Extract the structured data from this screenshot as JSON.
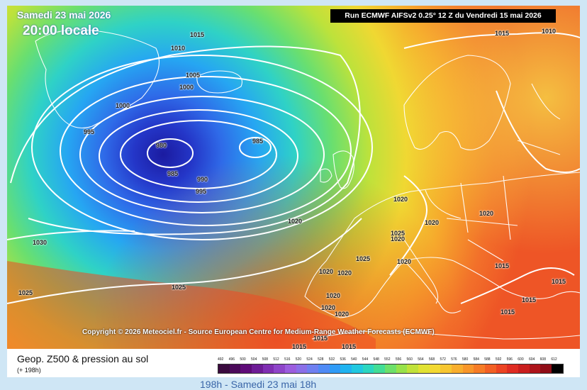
{
  "header": {
    "date_title": "Samedi 23 mai 2026",
    "time_title": "20:00 locale",
    "run_info": "Run ECMWF AIFSv2 0.25° 12 Z du Vendredi 15 mai 2026"
  },
  "copyright": "Copyright © 2026 Meteociel.fr - Source European Centre for Medium-Range Weather Forecasts (ECMWF)",
  "legend": {
    "title": "Geop. Z500 & pression au sol",
    "subtitle": "(+ 198h)",
    "scale_values": [
      "492",
      "496",
      "500",
      "504",
      "508",
      "512",
      "516",
      "520",
      "524",
      "528",
      "532",
      "536",
      "540",
      "544",
      "548",
      "552",
      "556",
      "560",
      "564",
      "568",
      "572",
      "576",
      "580",
      "584",
      "588",
      "592",
      "596",
      "600",
      "604",
      "608",
      "612"
    ],
    "scale_colors": [
      "#3a0a3e",
      "#4b0a5a",
      "#5e0b78",
      "#6d1c96",
      "#7f2fb2",
      "#8e45c9",
      "#9b5dde",
      "#8a6fe8",
      "#6f7ff0",
      "#4f8af5",
      "#2f9bf7",
      "#1fb3f0",
      "#20c8e0",
      "#2bd6c0",
      "#42dd96",
      "#6de06a",
      "#97e24a",
      "#c0e23a",
      "#e1e233",
      "#f3d932",
      "#f7c631",
      "#f8ae2e",
      "#f8962a",
      "#f67c26",
      "#f26024",
      "#ec4423",
      "#df2c22",
      "#c91e1e",
      "#ad141a",
      "#8f0c16",
      "#000000"
    ]
  },
  "bottom_text": "198h - Samedi 23 mai 18h",
  "map": {
    "pressure_labels": [
      {
        "text": "1015",
        "id": "p1"
      },
      {
        "text": "1010",
        "id": "p2"
      },
      {
        "text": "1005",
        "id": "p3"
      },
      {
        "text": "1000",
        "id": "p4"
      },
      {
        "text": "1000",
        "id": "p5"
      },
      {
        "text": "995",
        "id": "p6"
      },
      {
        "text": "980",
        "id": "p7"
      },
      {
        "text": "985",
        "id": "p8"
      },
      {
        "text": "985",
        "id": "p9"
      },
      {
        "text": "990",
        "id": "p10"
      },
      {
        "text": "995",
        "id": "p11"
      },
      {
        "text": "1015",
        "id": "p12"
      },
      {
        "text": "1010",
        "id": "p13"
      },
      {
        "text": "1020",
        "id": "p14"
      },
      {
        "text": "1030",
        "id": "p15"
      },
      {
        "text": "1025",
        "id": "p16"
      },
      {
        "text": "1025",
        "id": "p17"
      },
      {
        "text": "1020",
        "id": "p18"
      },
      {
        "text": "1025",
        "id": "p19"
      },
      {
        "text": "1020",
        "id": "p20"
      },
      {
        "text": "1020",
        "id": "p21"
      },
      {
        "text": "1020",
        "id": "p22"
      },
      {
        "text": "1025",
        "id": "p23"
      },
      {
        "text": "1020",
        "id": "p24"
      },
      {
        "text": "1020",
        "id": "p25"
      },
      {
        "text": "1020",
        "id": "p26"
      },
      {
        "text": "1020",
        "id": "p27"
      },
      {
        "text": "1020",
        "id": "p28"
      },
      {
        "text": "1015",
        "id": "p29"
      },
      {
        "text": "1015",
        "id": "p30"
      },
      {
        "text": "1015",
        "id": "p31"
      },
      {
        "text": "1015",
        "id": "p32"
      },
      {
        "text": "1015",
        "id": "p33"
      },
      {
        "text": "1015",
        "id": "p34"
      },
      {
        "text": "1015",
        "id": "p35"
      },
      {
        "text": "1020",
        "id": "p36"
      }
    ]
  }
}
